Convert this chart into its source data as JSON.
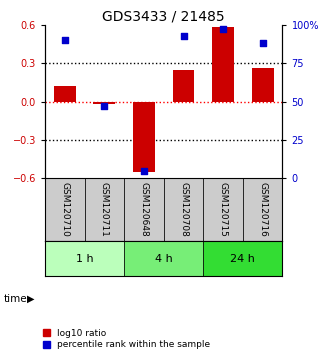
{
  "title": "GDS3433 / 21485",
  "samples": [
    "GSM120710",
    "GSM120711",
    "GSM120648",
    "GSM120708",
    "GSM120715",
    "GSM120716"
  ],
  "log10_ratio": [
    0.12,
    -0.02,
    -0.55,
    0.25,
    0.58,
    0.26
  ],
  "percentile_rank": [
    90,
    47,
    5,
    93,
    97,
    88
  ],
  "groups": [
    {
      "label": "1 h",
      "indices": [
        0,
        1
      ],
      "color": "#bbffbb"
    },
    {
      "label": "4 h",
      "indices": [
        2,
        3
      ],
      "color": "#77ee77"
    },
    {
      "label": "24 h",
      "indices": [
        4,
        5
      ],
      "color": "#33dd33"
    }
  ],
  "bar_color": "#cc0000",
  "dot_color": "#0000cc",
  "ylim_left": [
    -0.6,
    0.6
  ],
  "ylim_right": [
    0,
    100
  ],
  "yticks_left": [
    -0.6,
    -0.3,
    0.0,
    0.3,
    0.6
  ],
  "yticks_right": [
    0,
    25,
    50,
    75,
    100
  ],
  "background_color": "#ffffff",
  "sample_box_color": "#cccccc",
  "legend_bar_label": "log10 ratio",
  "legend_dot_label": "percentile rank within the sample",
  "time_label": "time"
}
